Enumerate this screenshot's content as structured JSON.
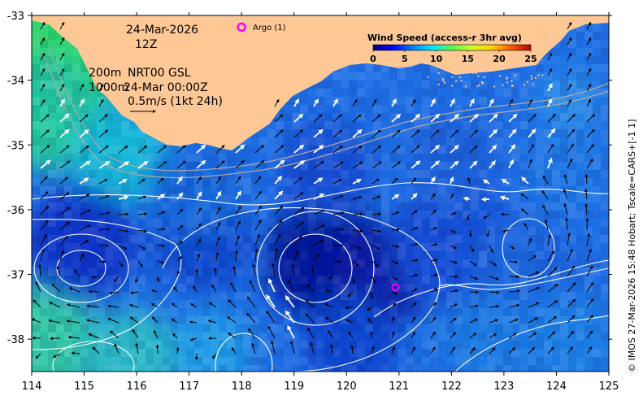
{
  "map": {
    "date_line": "24-Mar-2026",
    "time_line": "12Z",
    "depth_line_1": "200m",
    "depth_line_2": "1000m",
    "nrt_label": "NRT00 GSL",
    "nrt_time": "24-Mar 00:00Z",
    "scale_label": "0.5m/s (1kt 24h)",
    "argo_label": "Argo (1)",
    "credit": "© IMOS 27-Mar-2026 15:48 Hobart; Tscale=CARS+[-1 1]",
    "extent": {
      "lon": [
        114,
        125
      ],
      "lat": [
        -38.5,
        -33
      ]
    },
    "lon_ticks": [
      "114",
      "115",
      "116",
      "117",
      "118",
      "119",
      "120",
      "121",
      "122",
      "123",
      "124",
      "125"
    ],
    "lat_ticks": [
      "-33",
      "-34",
      "-35",
      "-36",
      "-37",
      "-38"
    ],
    "argo_float": {
      "lon": 120.93,
      "lat": -37.2
    },
    "legend_marker": {
      "lon": 118.0,
      "lat": -33.18
    },
    "colors": {
      "land": "#fdc896",
      "argo": "#ff00ff",
      "contour": "#ffffff",
      "isobath": "#a8a8a8"
    }
  },
  "colorbar": {
    "title": "Wind Speed (access-r 3hr avg)",
    "ticks": [
      "0",
      "5",
      "10",
      "15",
      "20",
      "25"
    ],
    "range": [
      0,
      25
    ],
    "colors": [
      "#00007f",
      "#0000ff",
      "#0080ff",
      "#00e5ff",
      "#4dff4d",
      "#d0ff20",
      "#ffd200",
      "#ff5a00",
      "#b20000"
    ]
  }
}
